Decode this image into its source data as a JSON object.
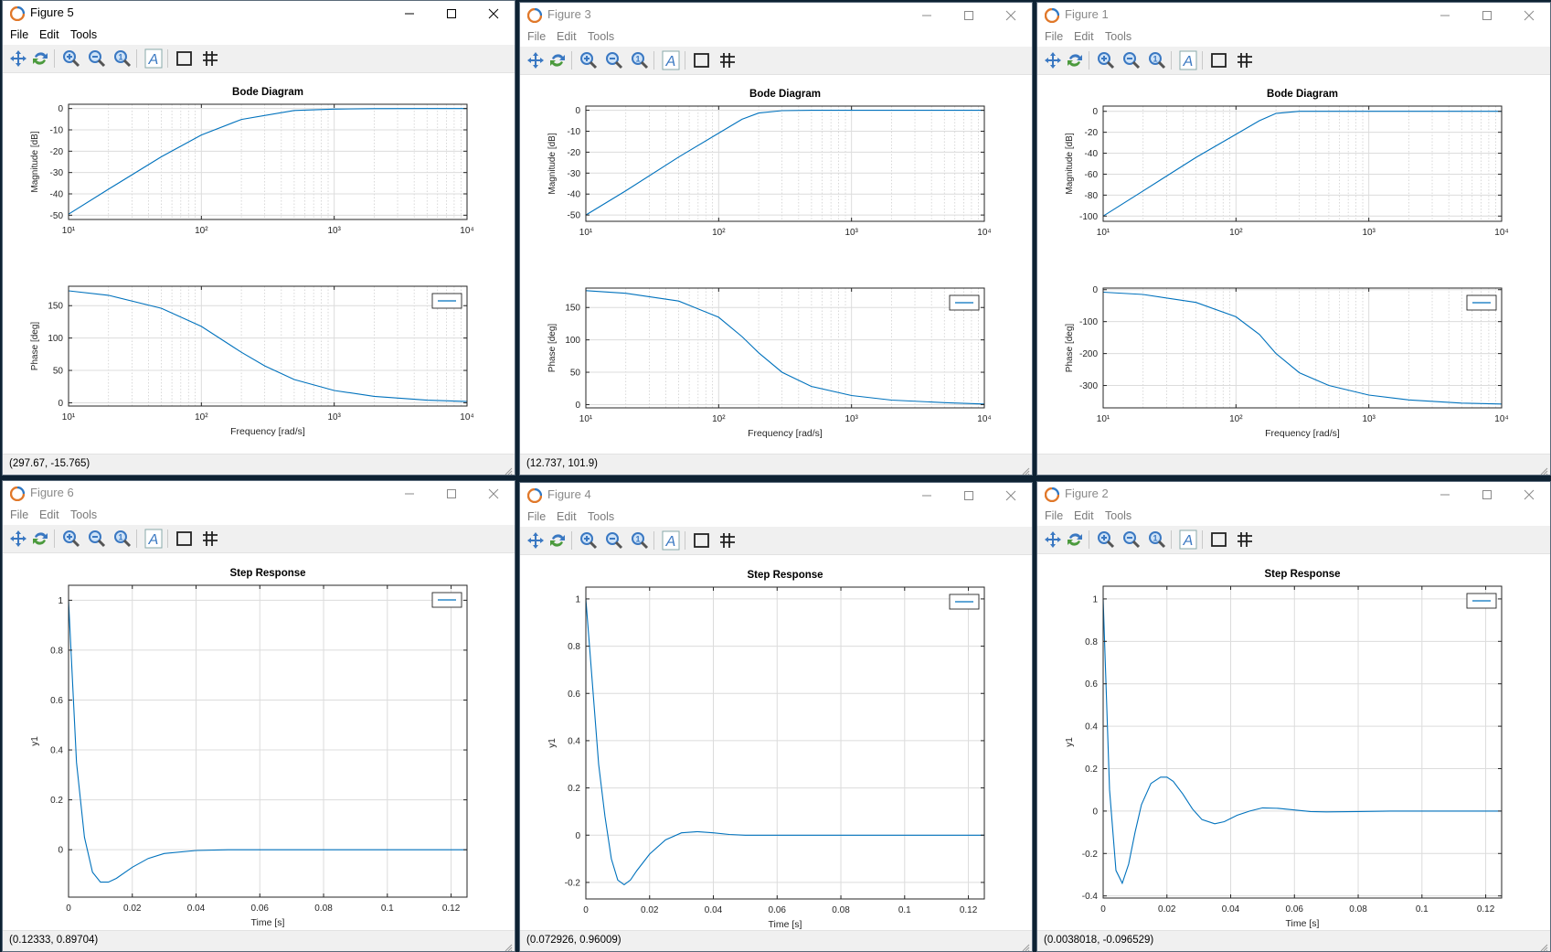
{
  "colors": {
    "series": "#0072bd",
    "desktop": "#0e2233",
    "toolbar_bg": "#f0f0f0",
    "icon_blue": "#3a78c2"
  },
  "menu": {
    "file": "File",
    "edit": "Edit",
    "tools": "Tools"
  },
  "toolbar_icons": [
    "pan-icon",
    "rotate-icon",
    "zoom-in-icon",
    "zoom-out-icon",
    "zoom-original-icon",
    "insert-text-icon",
    "axes-box-icon",
    "grid-icon"
  ],
  "windows": [
    {
      "title": "Figure 5",
      "active": true,
      "status": "(297.67, -15.765)",
      "chart_data": [
        {
          "type": "line",
          "title": "Bode Diagram",
          "xlabel": "",
          "ylabel": "Magnitude [dB]",
          "xscale": "log",
          "xlim": [
            10,
            10000
          ],
          "ylim": [
            -52,
            2
          ],
          "yticks": [
            0,
            -10,
            -20,
            -30,
            -40,
            -50
          ],
          "xticklabels": [
            "10¹",
            "10²",
            "10³",
            "10⁴"
          ],
          "grid": true,
          "legend": "",
          "series": [
            {
              "x": [
                10,
                20,
                50,
                100,
                200,
                500,
                1000,
                2000,
                5000,
                10000
              ],
              "y": [
                -49.5,
                -37.8,
                -22.6,
                -12.4,
                -5.1,
                -0.92,
                -0.25,
                -0.06,
                -0.01,
                0
              ]
            }
          ]
        },
        {
          "type": "line",
          "title": "",
          "xlabel": "Frequency [rad/s]",
          "ylabel": "Phase [deg]",
          "xscale": "log",
          "xlim": [
            10,
            10000
          ],
          "ylim": [
            -5,
            180
          ],
          "yticks": [
            0,
            50,
            100,
            150
          ],
          "xticklabels": [
            "10¹",
            "10²",
            "10³",
            "10⁴"
          ],
          "grid": true,
          "legend": "top-right",
          "series": [
            {
              "x": [
                10,
                20,
                50,
                100,
                200,
                300,
                500,
                1000,
                2000,
                5000,
                10000
              ],
              "y": [
                173,
                166,
                146,
                118,
                78,
                57,
                36,
                19,
                10,
                4,
                2
              ]
            }
          ]
        }
      ]
    },
    {
      "title": "Figure 3",
      "active": false,
      "status": "(12.737, 101.9)",
      "chart_data": [
        {
          "type": "line",
          "title": "Bode Diagram",
          "xlabel": "",
          "ylabel": "Magnitude [dB]",
          "xscale": "log",
          "xlim": [
            10,
            10000
          ],
          "ylim": [
            -53,
            2
          ],
          "yticks": [
            0,
            -10,
            -20,
            -30,
            -40,
            -50
          ],
          "xticklabels": [
            "10¹",
            "10²",
            "10³",
            "10⁴"
          ],
          "grid": true,
          "legend": "",
          "series": [
            {
              "x": [
                10,
                20,
                50,
                100,
                150,
                200,
                300,
                500,
                1000,
                10000
              ],
              "y": [
                -50,
                -38.4,
                -22.3,
                -10.9,
                -4.3,
                -1.3,
                -0.2,
                0,
                0,
                0
              ]
            }
          ]
        },
        {
          "type": "line",
          "title": "",
          "xlabel": "Frequency [rad/s]",
          "ylabel": "Phase [deg]",
          "xscale": "log",
          "xlim": [
            10,
            10000
          ],
          "ylim": [
            -5,
            180
          ],
          "yticks": [
            0,
            50,
            100,
            150
          ],
          "xticklabels": [
            "10¹",
            "10²",
            "10³",
            "10⁴"
          ],
          "grid": true,
          "legend": "top-right",
          "series": [
            {
              "x": [
                10,
                20,
                50,
                100,
                150,
                200,
                300,
                500,
                1000,
                2000,
                5000,
                10000
              ],
              "y": [
                176,
                172,
                160,
                135,
                105,
                80,
                50,
                28,
                14,
                7,
                3,
                1
              ]
            }
          ]
        }
      ]
    },
    {
      "title": "Figure 1",
      "active": false,
      "status": "",
      "chart_data": [
        {
          "type": "line",
          "title": "Bode Diagram",
          "xlabel": "",
          "ylabel": "Magnitude [dB]",
          "xscale": "log",
          "xlim": [
            10,
            10000
          ],
          "ylim": [
            -105,
            5
          ],
          "yticks": [
            0,
            -20,
            -40,
            -60,
            -80,
            -100
          ],
          "xticklabels": [
            "10¹",
            "10²",
            "10³",
            "10⁴"
          ],
          "grid": true,
          "legend": "",
          "series": [
            {
              "x": [
                10,
                20,
                50,
                100,
                150,
                200,
                300,
                1000,
                10000
              ],
              "y": [
                -100,
                -76,
                -44,
                -22,
                -9,
                -2,
                0,
                0,
                0
              ]
            }
          ]
        },
        {
          "type": "line",
          "title": "",
          "xlabel": "Frequency [rad/s]",
          "ylabel": "Phase [deg]",
          "xscale": "log",
          "xlim": [
            10,
            10000
          ],
          "ylim": [
            -370,
            5
          ],
          "yticks": [
            0,
            -100,
            -200,
            -300
          ],
          "xticklabels": [
            "10¹",
            "10²",
            "10³",
            "10⁴"
          ],
          "grid": true,
          "legend": "top-right",
          "series": [
            {
              "x": [
                10,
                20,
                50,
                100,
                150,
                200,
                300,
                500,
                1000,
                2000,
                5000,
                10000
              ],
              "y": [
                -8,
                -15,
                -40,
                -85,
                -140,
                -200,
                -260,
                -300,
                -330,
                -345,
                -355,
                -358
              ]
            }
          ]
        }
      ]
    },
    {
      "title": "Figure 6",
      "active": false,
      "status": "(0.12333, 0.89704)",
      "chart_data": [
        {
          "type": "line",
          "title": "Step Response",
          "xlabel": "Time [s]",
          "ylabel": "y1",
          "xlim": [
            0,
            0.125
          ],
          "ylim": [
            -0.19,
            1.06
          ],
          "yticks": [
            0,
            0.2,
            0.4,
            0.6,
            0.8,
            1
          ],
          "xticks": [
            0,
            0.02,
            0.04,
            0.06,
            0.08,
            0.1,
            0.12
          ],
          "grid": true,
          "legend": "top-right",
          "series": [
            {
              "x": [
                0,
                0.0025,
                0.005,
                0.0075,
                0.01,
                0.0125,
                0.015,
                0.02,
                0.025,
                0.03,
                0.04,
                0.05,
                0.06,
                0.125
              ],
              "y": [
                1,
                0.35,
                0.05,
                -0.09,
                -0.13,
                -0.13,
                -0.115,
                -0.07,
                -0.035,
                -0.015,
                -0.003,
                0,
                0,
                0
              ]
            }
          ]
        }
      ]
    },
    {
      "title": "Figure 4",
      "active": false,
      "status": "(0.072926, 0.96009)",
      "chart_data": [
        {
          "type": "line",
          "title": "Step Response",
          "xlabel": "Time [s]",
          "ylabel": "y1",
          "xlim": [
            0,
            0.125
          ],
          "ylim": [
            -0.27,
            1.05
          ],
          "yticks": [
            -0.2,
            0,
            0.2,
            0.4,
            0.6,
            0.8,
            1
          ],
          "xticks": [
            0,
            0.02,
            0.04,
            0.06,
            0.08,
            0.1,
            0.12
          ],
          "grid": true,
          "legend": "top-right",
          "series": [
            {
              "x": [
                0,
                0.002,
                0.004,
                0.006,
                0.008,
                0.01,
                0.012,
                0.014,
                0.016,
                0.02,
                0.025,
                0.03,
                0.035,
                0.04,
                0.045,
                0.05,
                0.06,
                0.125
              ],
              "y": [
                1,
                0.65,
                0.3,
                0.08,
                -0.1,
                -0.19,
                -0.21,
                -0.19,
                -0.15,
                -0.08,
                -0.02,
                0.01,
                0.015,
                0.01,
                0.003,
                0,
                0,
                0
              ]
            }
          ]
        }
      ]
    },
    {
      "title": "Figure 2",
      "active": false,
      "status": "(0.0038018, -0.096529)",
      "chart_data": [
        {
          "type": "line",
          "title": "Step Response",
          "xlabel": "Time [s]",
          "ylabel": "y1",
          "xlim": [
            0,
            0.125
          ],
          "ylim": [
            -0.41,
            1.06
          ],
          "yticks": [
            -0.4,
            -0.2,
            0,
            0.2,
            0.4,
            0.6,
            0.8,
            1
          ],
          "xticks": [
            0,
            0.02,
            0.04,
            0.06,
            0.08,
            0.1,
            0.12
          ],
          "grid": true,
          "legend": "top-right",
          "series": [
            {
              "x": [
                0,
                0.002,
                0.004,
                0.006,
                0.008,
                0.01,
                0.012,
                0.015,
                0.018,
                0.02,
                0.022,
                0.025,
                0.028,
                0.031,
                0.035,
                0.038,
                0.042,
                0.046,
                0.05,
                0.055,
                0.06,
                0.065,
                0.07,
                0.08,
                0.09,
                0.1,
                0.125
              ],
              "y": [
                1,
                0.1,
                -0.28,
                -0.34,
                -0.25,
                -0.1,
                0.03,
                0.13,
                0.16,
                0.16,
                0.14,
                0.08,
                0.01,
                -0.04,
                -0.06,
                -0.05,
                -0.02,
                0,
                0.015,
                0.013,
                0.005,
                -0.002,
                -0.004,
                -0.002,
                0,
                0,
                0
              ]
            }
          ]
        }
      ]
    }
  ]
}
